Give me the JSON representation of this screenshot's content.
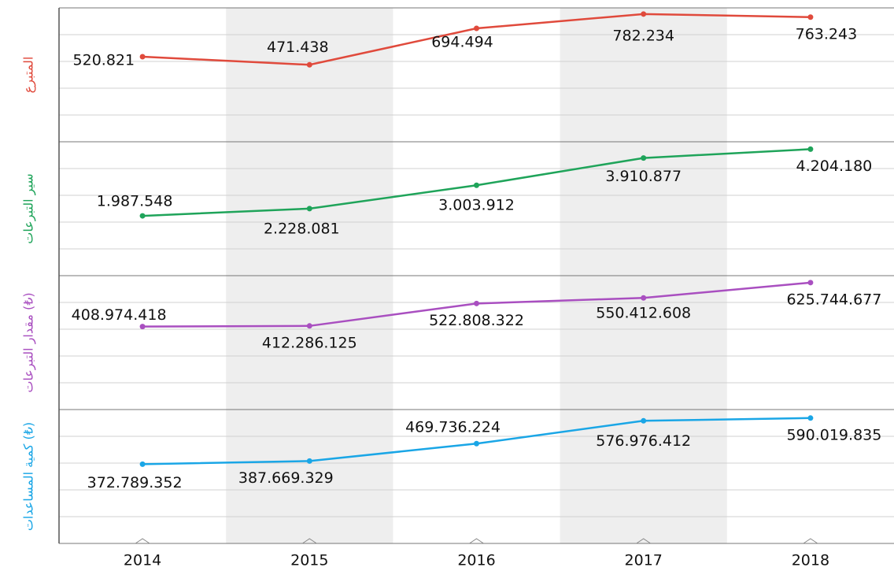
{
  "chart_data": [
    {
      "type": "line",
      "y_label": "المتبرع",
      "color": "#e04a3c",
      "ylim": [
        0,
        820000
      ],
      "values": [
        520821,
        471438,
        694494,
        782234,
        763243
      ],
      "value_labels": [
        "520.821",
        "471.438",
        "694.494",
        "782.234",
        "763.243"
      ]
    },
    {
      "type": "line",
      "y_label": "سير التبرعات",
      "color": "#1fa45a",
      "ylim": [
        0,
        4450000
      ],
      "values": [
        1987548,
        2228081,
        3003912,
        3910877,
        4204180
      ],
      "value_labels": [
        "1.987.548",
        "2.228.081",
        "3.003.912",
        "3.910.877",
        "4.204.180"
      ]
    },
    {
      "type": "line",
      "y_label": "مقدار التبرعات (₺)",
      "color": "#a94fc0",
      "ylim": [
        0,
        660000000
      ],
      "values": [
        408974418,
        412286125,
        522808322,
        550412608,
        625744677
      ],
      "value_labels": [
        "408.974.418",
        "412.286.125",
        "522.808.322",
        "550.412.608",
        "625.744.677"
      ]
    },
    {
      "type": "line",
      "y_label": "كمية المساعدات (₺)",
      "color": "#1aa6e6",
      "ylim": [
        0,
        630000000
      ],
      "categories": [
        "2014",
        "2015",
        "2016",
        "2017",
        "2018"
      ],
      "values": [
        372789352,
        387669329,
        469736224,
        576976412,
        590019835
      ],
      "value_labels": [
        "372.789.352",
        "387.669.329",
        "469.736.224",
        "576.976.412",
        "590.019.835"
      ]
    }
  ]
}
